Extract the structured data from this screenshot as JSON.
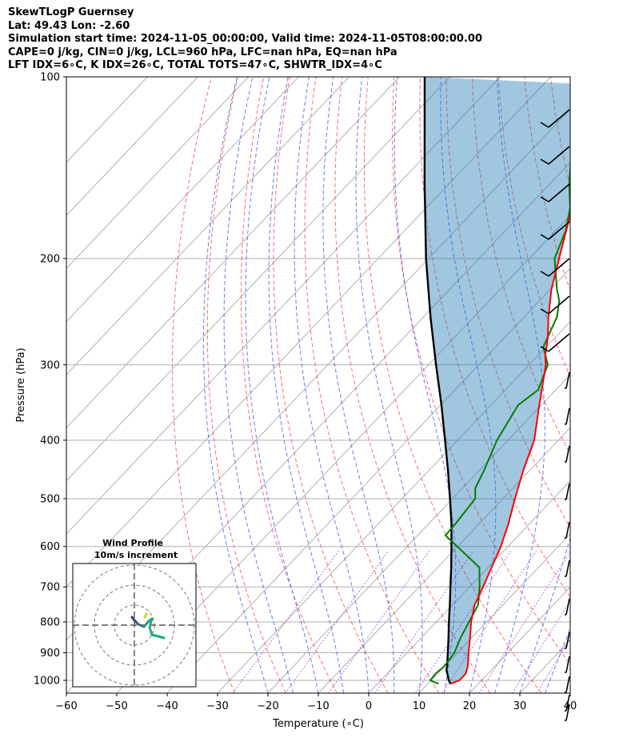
{
  "header": {
    "lines": [
      "SkewTLogP Guernsey",
      "Lat: 49.43   Lon: -2.60",
      "Simulation start time: 2024-11-05_00:00:00, Valid time: 2024-11-05T08:00:00.00",
      "CAPE=0 j/kg, CIN=0 j/kg, LCL=960 hPa, LFC=nan hPa, EQ=nan hPa",
      "LFT IDX=6∘C, K IDX=26∘C, TOTAL TOTS=47∘C, SHWTR_IDX=4∘C"
    ]
  },
  "chart_data": {
    "type": "line",
    "subtype": "skew-t log-p",
    "xlabel": "Temperature (∘C)",
    "ylabel": "Pressure (hPa)",
    "xlim": [
      -60,
      40
    ],
    "ylim": [
      1050,
      100
    ],
    "y_scale": "log",
    "x_ticks": [
      -60,
      -50,
      -40,
      -30,
      -20,
      -10,
      0,
      10,
      20,
      30,
      40
    ],
    "x_tick_labels": [
      "−60",
      "−50",
      "−40",
      "−30",
      "−20",
      "−10",
      "0",
      "10",
      "20",
      "30",
      "40"
    ],
    "y_ticks": [
      100,
      200,
      300,
      400,
      500,
      600,
      700,
      800,
      900,
      1000
    ],
    "y_tick_labels": [
      "100",
      "200",
      "300",
      "400",
      "500",
      "600",
      "700",
      "800",
      "900",
      "1000"
    ],
    "grid": true,
    "series": [
      {
        "role": "temperature",
        "color": "#ff0000",
        "pressure": [
          1013,
          1000,
          975,
          950,
          925,
          900,
          850,
          800,
          750,
          700,
          650,
          600,
          550,
          500,
          450,
          400,
          350,
          300,
          290,
          270,
          250,
          225,
          200,
          175,
          150,
          125,
          110,
          100
        ],
        "temperature": [
          14.5,
          15.6,
          15.6,
          14.7,
          13.5,
          12.2,
          9.7,
          6.9,
          4.4,
          2.7,
          0.7,
          -1.4,
          -4.2,
          -7.6,
          -11.2,
          -14.8,
          -20.4,
          -26.7,
          -28.5,
          -31.5,
          -35.2,
          -39.8,
          -44.1,
          -48.9,
          -54.2,
          -61.8,
          -66.9,
          -70.8
        ]
      },
      {
        "role": "dewpoint",
        "color": "#008000",
        "pressure": [
          1013,
          1000,
          975,
          950,
          925,
          900,
          850,
          800,
          750,
          700,
          650,
          575,
          550,
          500,
          480,
          450,
          400,
          350,
          330,
          300,
          280,
          250,
          235,
          225,
          200,
          180,
          165,
          150,
          130,
          115,
          100
        ],
        "temperature": [
          12.1,
          9.8,
          9.6,
          9.9,
          9.7,
          9.4,
          7.8,
          6.5,
          5.1,
          2.0,
          -1.7,
          -14.5,
          -14.7,
          -15.5,
          -17.5,
          -19.0,
          -22.2,
          -24.6,
          -23.5,
          -26.3,
          -30.6,
          -33.5,
          -36.1,
          -38.7,
          -45.0,
          -48.0,
          -51.4,
          -56.3,
          -62.8,
          -67.8,
          -74.8
        ]
      },
      {
        "role": "parcel",
        "color": "#000000",
        "pressure": [
          1013,
          1000,
          960,
          950,
          900,
          850,
          800,
          750,
          700,
          650,
          600,
          550,
          500,
          450,
          400,
          350,
          300,
          250,
          200,
          150,
          100
        ],
        "temperature": [
          14.5,
          13.5,
          11.0,
          10.6,
          8.1,
          5.4,
          2.5,
          -0.5,
          -3.8,
          -7.3,
          -11.2,
          -15.5,
          -20.5,
          -26.1,
          -32.5,
          -39.8,
          -48.5,
          -58.6,
          -70.5,
          -85.0,
          -105.0
        ]
      }
    ],
    "inset": {
      "title": "Wind Profile",
      "subtitle": "10m/s increment",
      "rings": [
        10,
        20,
        30
      ]
    }
  }
}
